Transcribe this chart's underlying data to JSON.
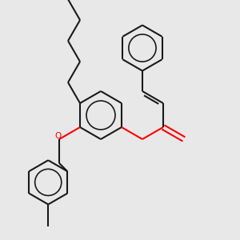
{
  "background_color": "#e8e8e8",
  "line_color": "#1a1a1a",
  "oxygen_color": "#ff0000",
  "line_width": 1.5,
  "figsize": [
    3.0,
    3.0
  ],
  "dpi": 100
}
